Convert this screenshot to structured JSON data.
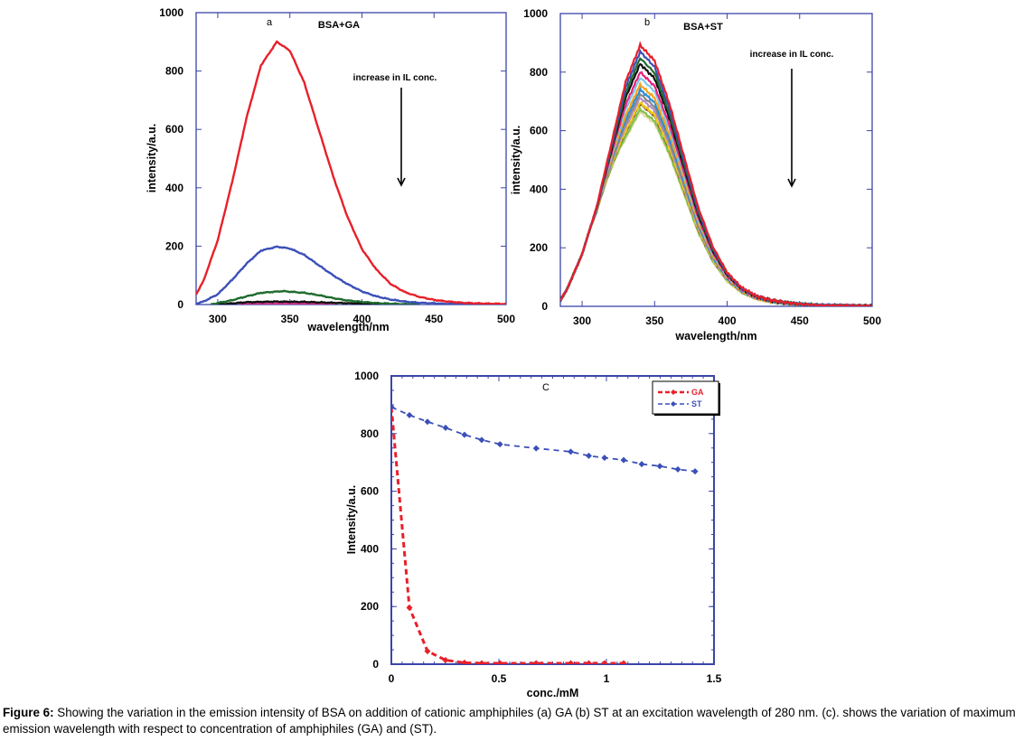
{
  "chart_data": [
    {
      "id": "a",
      "type": "line",
      "panel_letter": "a",
      "title": "BSA+GA",
      "annotation": "increase in IL conc.",
      "xlabel": "wavelength/nm",
      "ylabel": "intensity/a.u.",
      "xlim": [
        285,
        500
      ],
      "ylim": [
        0,
        1000
      ],
      "xticks": [
        300,
        350,
        400,
        450,
        500
      ],
      "yticks": [
        0,
        200,
        400,
        600,
        800,
        1000
      ],
      "grid": false,
      "series": [
        {
          "name": "curve-1",
          "color": "#e8202a",
          "x": [
            285,
            290,
            300,
            310,
            320,
            330,
            341,
            350,
            360,
            370,
            380,
            390,
            400,
            410,
            420,
            430,
            440,
            450,
            460,
            470,
            480,
            490,
            500
          ],
          "y": [
            35,
            80,
            220,
            420,
            640,
            820,
            900,
            870,
            760,
            600,
            440,
            300,
            190,
            120,
            70,
            42,
            26,
            16,
            10,
            6,
            4,
            3,
            2
          ]
        },
        {
          "name": "curve-2",
          "color": "#3b4fb8",
          "x": [
            285,
            290,
            300,
            310,
            320,
            330,
            341,
            350,
            360,
            370,
            380,
            390,
            400,
            410,
            420,
            430,
            440,
            450,
            460,
            470,
            500
          ],
          "y": [
            3,
            10,
            35,
            85,
            140,
            185,
            198,
            192,
            170,
            135,
            100,
            70,
            45,
            28,
            17,
            10,
            6,
            4,
            2,
            1,
            0
          ]
        },
        {
          "name": "curve-3",
          "color": "#1f6b2e",
          "x": [
            295,
            300,
            310,
            320,
            330,
            345,
            360,
            370,
            380,
            390,
            400,
            410,
            420,
            430,
            440
          ],
          "y": [
            0,
            5,
            15,
            28,
            40,
            46,
            40,
            32,
            22,
            14,
            9,
            5,
            3,
            1,
            0
          ]
        },
        {
          "name": "curve-4",
          "color": "#111111",
          "x": [
            300,
            310,
            320,
            340,
            360,
            380,
            400,
            420
          ],
          "y": [
            0,
            4,
            8,
            10,
            9,
            6,
            3,
            1
          ]
        },
        {
          "name": "curve-5",
          "color": "#d6338a",
          "x": [
            315,
            330,
            350,
            370,
            380
          ],
          "y": [
            0,
            2,
            3,
            2,
            1
          ]
        },
        {
          "name": "curve-6",
          "color": "#9aa0b0",
          "x": [
            380,
            400,
            430,
            460,
            500
          ],
          "y": [
            1,
            1,
            1,
            0,
            0
          ]
        }
      ]
    },
    {
      "id": "b",
      "type": "line",
      "panel_letter": "b",
      "title": "BSA+ST",
      "annotation": "increase in IL conc.",
      "xlabel": "wavelength/nm",
      "ylabel": "intensity/a.u.",
      "xlim": [
        285,
        500
      ],
      "ylim": [
        0,
        1000
      ],
      "xticks": [
        300,
        350,
        400,
        450,
        500
      ],
      "yticks": [
        0,
        200,
        400,
        600,
        800,
        1000
      ],
      "grid": false,
      "profile": {
        "x": [
          285,
          290,
          300,
          310,
          320,
          330,
          340,
          350,
          360,
          370,
          380,
          390,
          400,
          410,
          420,
          430,
          440,
          450,
          460,
          470,
          480,
          490,
          500
        ],
        "y": [
          0.022,
          0.07,
          0.2,
          0.38,
          0.62,
          0.86,
          1.0,
          0.94,
          0.78,
          0.58,
          0.38,
          0.23,
          0.13,
          0.072,
          0.04,
          0.024,
          0.015,
          0.009,
          0.005,
          0.003,
          0.002,
          0.001,
          0.0
        ]
      },
      "series": [
        {
          "name": "curve-1",
          "color": "#e8202a",
          "peak": 892
        },
        {
          "name": "curve-2",
          "color": "#3b4fb8",
          "peak": 870
        },
        {
          "name": "curve-3",
          "color": "#1f6b2e",
          "peak": 848
        },
        {
          "name": "curve-4",
          "color": "#111111",
          "peak": 828
        },
        {
          "name": "curve-5",
          "color": "#e8217d",
          "peak": 800
        },
        {
          "name": "curve-6",
          "color": "#7ec8e8",
          "peak": 781
        },
        {
          "name": "curve-7",
          "color": "#f7a21b",
          "peak": 757
        },
        {
          "name": "curve-8",
          "color": "#2b8fd1",
          "peak": 740
        },
        {
          "name": "curve-9",
          "color": "#8a8a8a",
          "peak": 725
        },
        {
          "name": "curve-10",
          "color": "#b48ec7",
          "peak": 712
        },
        {
          "name": "curve-11",
          "color": "#f3cb14",
          "peak": 696
        },
        {
          "name": "curve-12",
          "color": "#8b5a2b",
          "peak": 691
        },
        {
          "name": "curve-13",
          "color": "#7cc44e",
          "peak": 673
        },
        {
          "name": "curve-14",
          "color": "#e8d9b0",
          "peak": 665
        }
      ]
    },
    {
      "id": "c",
      "type": "line",
      "panel_letter": "C",
      "title": "",
      "xlabel": "conc./mM",
      "ylabel": "Intensity/a.u.",
      "xlim": [
        0,
        1.5
      ],
      "ylim": [
        0,
        1000
      ],
      "xticks": [
        0,
        0.5,
        1,
        1.5
      ],
      "yticks": [
        0,
        200,
        400,
        600,
        800,
        1000
      ],
      "grid": false,
      "legend_position": "top-right",
      "series": [
        {
          "name": "GA",
          "color": "#e8202a",
          "x": [
            0,
            0.084,
            0.168,
            0.252,
            0.34,
            0.42,
            0.505,
            0.673,
            0.834,
            0.918,
            0.991,
            1.08
          ],
          "y": [
            892,
            196,
            45,
            14,
            5,
            3,
            3,
            3,
            3,
            3,
            3,
            3
          ]
        },
        {
          "name": "ST",
          "color": "#3b4fb8",
          "x": [
            0,
            0.084,
            0.168,
            0.252,
            0.34,
            0.42,
            0.505,
            0.673,
            0.834,
            0.918,
            0.991,
            1.08,
            1.164,
            1.248,
            1.332,
            1.412
          ],
          "y": [
            892,
            864,
            841,
            820,
            796,
            778,
            763,
            749,
            737,
            723,
            716,
            708,
            694,
            687,
            676,
            669
          ]
        }
      ]
    }
  ],
  "caption": {
    "label": "Figure 6:",
    "text": " Showing the variation in the emission intensity of BSA on addition of cationic amphiphiles (a) GA (b) ST at an excitation wavelength of 280 nm. (c). shows the variation of maximum emission wavelength with respect to concentration of amphiphiles (GA) and (ST)."
  },
  "axis_color": "#3b45a8"
}
